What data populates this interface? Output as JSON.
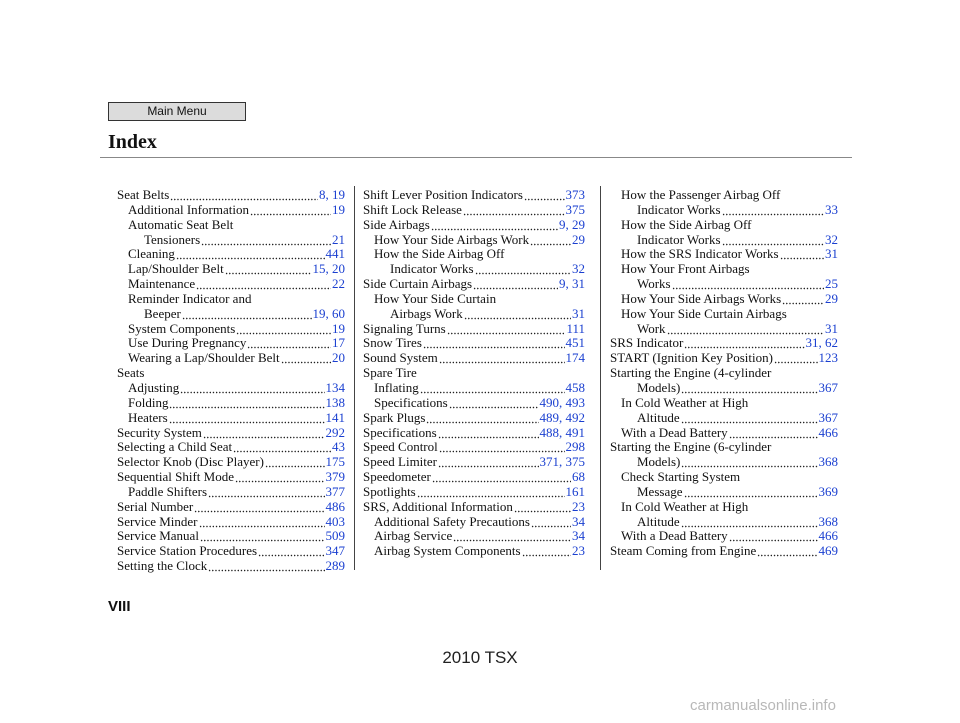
{
  "header": {
    "main_menu": "Main Menu",
    "title": "Index"
  },
  "columns": [
    [
      {
        "text": "Seat Belts",
        "level": 0,
        "pages": "8, 19"
      },
      {
        "text": "Additional Information",
        "level": 1,
        "pages": "19"
      },
      {
        "text": "Automatic Seat Belt",
        "level": 1
      },
      {
        "text": "Tensioners",
        "level": 2,
        "pages": "21"
      },
      {
        "text": "Cleaning",
        "level": 1,
        "pages": "441"
      },
      {
        "text": "Lap/Shoulder Belt",
        "level": 1,
        "pages": "15, 20"
      },
      {
        "text": "Maintenance",
        "level": 1,
        "pages": "22"
      },
      {
        "text": "Reminder Indicator and",
        "level": 1
      },
      {
        "text": "Beeper",
        "level": 2,
        "pages": "19, 60"
      },
      {
        "text": "System Components",
        "level": 1,
        "pages": "19"
      },
      {
        "text": "Use During Pregnancy",
        "level": 1,
        "pages": "17"
      },
      {
        "text": "Wearing a Lap/Shoulder Belt",
        "level": 1,
        "pages": "20"
      },
      {
        "text": "Seats",
        "level": 0
      },
      {
        "text": "Adjusting",
        "level": 1,
        "pages": "134"
      },
      {
        "text": "Folding",
        "level": 1,
        "pages": "138"
      },
      {
        "text": "Heaters",
        "level": 1,
        "pages": "141"
      },
      {
        "text": "Security System",
        "level": 0,
        "pages": "292"
      },
      {
        "text": "Selecting a Child Seat",
        "level": 0,
        "pages": "43"
      },
      {
        "text": "Selector Knob (Disc Player)",
        "level": 0,
        "pages": "175"
      },
      {
        "text": "Sequential Shift Mode",
        "level": 0,
        "pages": "379"
      },
      {
        "text": "Paddle Shifters",
        "level": 1,
        "pages": "377"
      },
      {
        "text": "Serial Number",
        "level": 0,
        "pages": "486"
      },
      {
        "text": "Service Minder",
        "level": 0,
        "pages": "403"
      },
      {
        "text": "Service Manual",
        "level": 0,
        "pages": "509"
      },
      {
        "text": "Service Station Procedures",
        "level": 0,
        "pages": "347"
      },
      {
        "text": "Setting the Clock",
        "level": 0,
        "pages": "289"
      }
    ],
    [
      {
        "text": "Shift Lever Position Indicators",
        "level": 0,
        "pages": "373"
      },
      {
        "text": "Shift Lock Release",
        "level": 0,
        "pages": "375"
      },
      {
        "text": "Side Airbags",
        "level": 0,
        "pages": "9, 29"
      },
      {
        "text": "How Your Side Airbags Work",
        "level": 1,
        "pages": "29"
      },
      {
        "text": "How the Side Airbag Off",
        "level": 1
      },
      {
        "text": "Indicator Works",
        "level": 2,
        "pages": "32"
      },
      {
        "text": "Side Curtain Airbags",
        "level": 0,
        "pages": "9, 31"
      },
      {
        "text": "How Your Side Curtain",
        "level": 1
      },
      {
        "text": "Airbags Work",
        "level": 2,
        "pages": "31"
      },
      {
        "text": "Signaling Turns",
        "level": 0,
        "pages": "111"
      },
      {
        "text": "Snow Tires",
        "level": 0,
        "pages": "451"
      },
      {
        "text": "Sound System",
        "level": 0,
        "pages": "174"
      },
      {
        "text": "Spare Tire",
        "level": 0
      },
      {
        "text": "Inflating",
        "level": 1,
        "pages": "458"
      },
      {
        "text": "Specifications",
        "level": 1,
        "pages": "490, 493"
      },
      {
        "text": "Spark Plugs",
        "level": 0,
        "pages": "489, 492"
      },
      {
        "text": "Specifications",
        "level": 0,
        "pages": "488, 491"
      },
      {
        "text": "Speed Control",
        "level": 0,
        "pages": "298"
      },
      {
        "text": "Speed Limiter",
        "level": 0,
        "pages": "371, 375"
      },
      {
        "text": "Speedometer",
        "level": 0,
        "pages": "68"
      },
      {
        "text": "Spotlights",
        "level": 0,
        "pages": "161"
      },
      {
        "text": "SRS, Additional Information",
        "level": 0,
        "pages": "23"
      },
      {
        "text": "Additional Safety Precautions",
        "level": 1,
        "pages": "34"
      },
      {
        "text": "Airbag Service",
        "level": 1,
        "pages": "34"
      },
      {
        "text": "Airbag System Components",
        "level": 1,
        "pages": "23"
      }
    ],
    [
      {
        "text": "How the Passenger Airbag Off",
        "level": 1
      },
      {
        "text": "Indicator Works",
        "level": 2,
        "pages": "33"
      },
      {
        "text": "How the Side Airbag Off",
        "level": 1
      },
      {
        "text": "Indicator Works",
        "level": 2,
        "pages": "32"
      },
      {
        "text": "How the SRS Indicator Works",
        "level": 1,
        "pages": "31"
      },
      {
        "text": "How Your Front Airbags",
        "level": 1
      },
      {
        "text": "Works",
        "level": 2,
        "pages": "25"
      },
      {
        "text": "How Your Side Airbags Works",
        "level": 1,
        "pages": "29"
      },
      {
        "text": "How Your Side Curtain Airbags",
        "level": 1
      },
      {
        "text": "Work",
        "level": 2,
        "pages": "31"
      },
      {
        "text": "SRS Indicator",
        "level": 0,
        "pages": "31, 62"
      },
      {
        "text": "START (Ignition Key Position)",
        "level": 0,
        "pages": "123"
      },
      {
        "text": "Starting the Engine (4-cylinder",
        "level": 0
      },
      {
        "text": "Models)",
        "level": 2,
        "pages": "367"
      },
      {
        "text": "In Cold Weather at High",
        "level": 1
      },
      {
        "text": "Altitude",
        "level": 2,
        "pages": "367"
      },
      {
        "text": "With a Dead Battery",
        "level": 1,
        "pages": "466"
      },
      {
        "text": "Starting the Engine (6-cylinder",
        "level": 0
      },
      {
        "text": "Models)",
        "level": 2,
        "pages": "368"
      },
      {
        "text": "Check Starting System",
        "level": 1
      },
      {
        "text": "Message",
        "level": 2,
        "pages": "369"
      },
      {
        "text": "In Cold Weather at High",
        "level": 1
      },
      {
        "text": "Altitude",
        "level": 2,
        "pages": "368"
      },
      {
        "text": "With a Dead Battery",
        "level": 1,
        "pages": "466"
      },
      {
        "text": "Steam Coming from Engine",
        "level": 0,
        "pages": "469"
      }
    ]
  ],
  "page_number": "VIII",
  "footer": "2010 TSX",
  "watermark": "carmanualsonline.info"
}
